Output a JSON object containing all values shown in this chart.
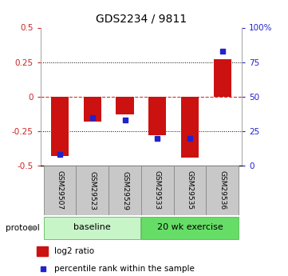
{
  "title": "GDS2234 / 9811",
  "samples": [
    "GSM29507",
    "GSM29523",
    "GSM29529",
    "GSM29533",
    "GSM29535",
    "GSM29536"
  ],
  "log2_ratio": [
    -0.43,
    -0.18,
    -0.13,
    -0.28,
    -0.44,
    0.27
  ],
  "percentile_rank": [
    8,
    35,
    33,
    20,
    20,
    83
  ],
  "groups": [
    {
      "label": "baseline",
      "start": 0,
      "end": 3,
      "color": "#c8f5c8"
    },
    {
      "label": "20 wk exercise",
      "start": 3,
      "end": 6,
      "color": "#66dd66"
    }
  ],
  "ylim_left": [
    -0.5,
    0.5
  ],
  "ylim_right": [
    0,
    100
  ],
  "yticks_left": [
    -0.5,
    -0.25,
    0,
    0.25,
    0.5
  ],
  "yticks_right": [
    0,
    25,
    50,
    75,
    100
  ],
  "bar_color": "#cc1111",
  "dot_color": "#2222cc",
  "tick_color_left": "#cc2222",
  "tick_color_right": "#2222cc",
  "protocol_label": "protocol",
  "legend_red": "log2 ratio",
  "legend_blue": "percentile rank within the sample",
  "gridline_y": [
    -0.25,
    0,
    0.25
  ],
  "zero_line_color": "#cc3333",
  "sample_box_color": "#c8c8c8",
  "sample_box_edge": "#888888"
}
